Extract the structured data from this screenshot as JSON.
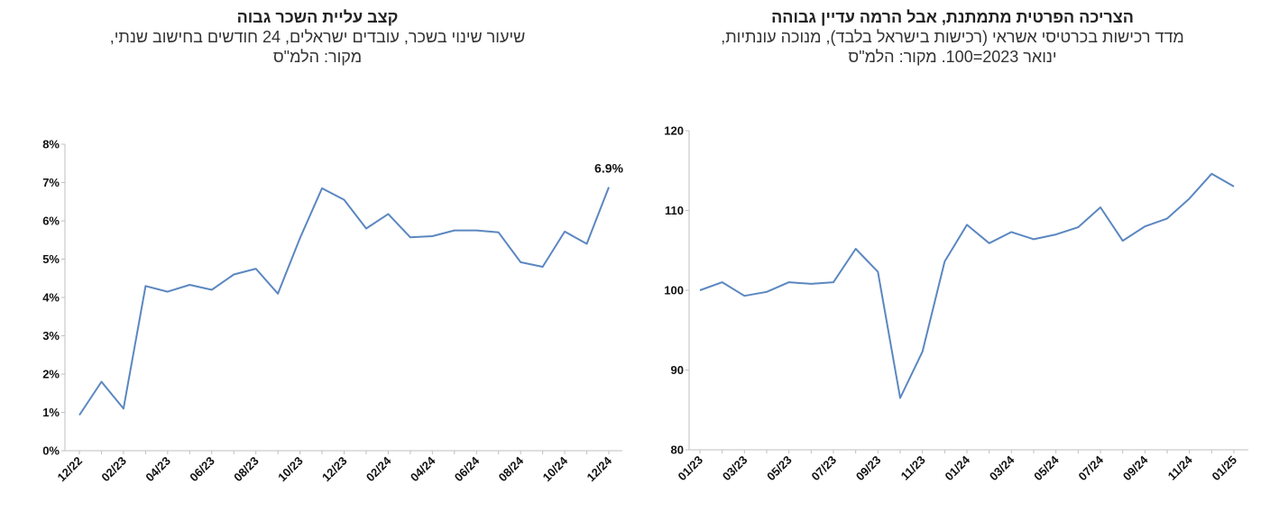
{
  "colors": {
    "line": "#5b87c0",
    "axis": "#bfbfbf",
    "text": "#111111"
  },
  "chart_data": [
    {
      "type": "line",
      "title": "קצב עליית השכר גבוה",
      "subtitle_lines": [
        "שיעור שינוי בשכר, עובדים ישראלים, 24 חודשים בחישוב שנתי,",
        "מקור: הלמ\"ס"
      ],
      "ylim": [
        0,
        8
      ],
      "yticks": [
        0,
        1,
        2,
        3,
        4,
        5,
        6,
        7,
        8
      ],
      "ytick_labels": [
        "0%",
        "1%",
        "2%",
        "3%",
        "4%",
        "5%",
        "6%",
        "7%",
        "8%"
      ],
      "x": [
        "12/22",
        "01/23",
        "02/23",
        "03/23",
        "04/23",
        "05/23",
        "06/23",
        "07/23",
        "08/23",
        "09/23",
        "10/23",
        "11/23",
        "12/23",
        "01/24",
        "02/24",
        "03/24",
        "04/24",
        "05/24",
        "06/24",
        "07/24",
        "08/24",
        "09/24",
        "10/24",
        "11/24",
        "12/24"
      ],
      "xtick_labels": [
        "12/22",
        "02/23",
        "04/23",
        "06/23",
        "08/23",
        "10/23",
        "12/23",
        "02/24",
        "04/24",
        "06/24",
        "08/24",
        "10/24",
        "12/24"
      ],
      "values": [
        0.93,
        1.8,
        1.1,
        4.3,
        4.15,
        4.33,
        4.2,
        4.6,
        4.75,
        4.1,
        5.55,
        6.85,
        6.55,
        5.8,
        6.18,
        5.57,
        5.6,
        5.75,
        5.75,
        5.7,
        4.92,
        4.8,
        5.72,
        5.4,
        6.88
      ],
      "data_labels": [
        {
          "index": 24,
          "text": "6.9%"
        }
      ],
      "grid": false
    },
    {
      "type": "line",
      "title": "הצריכה הפרטית מתמתנת, אבל הרמה עדיין גבוהה",
      "subtitle_lines": [
        "מדד רכישות בכרטיסי אשראי (רכישות בישראל בלבד), מנוכה עונתיות,",
        "ינואר 2023=100. מקור: הלמ\"ס"
      ],
      "ylim": [
        80,
        120
      ],
      "yticks": [
        80,
        90,
        100,
        110,
        120
      ],
      "ytick_labels": [
        "80",
        "90",
        "100",
        "110",
        "120"
      ],
      "x": [
        "01/23",
        "02/23",
        "03/23",
        "04/23",
        "05/23",
        "06/23",
        "07/23",
        "08/23",
        "09/23",
        "10/23",
        "11/23",
        "12/23",
        "01/24",
        "02/24",
        "03/24",
        "04/24",
        "05/24",
        "06/24",
        "07/24",
        "08/24",
        "09/24",
        "10/24",
        "11/24",
        "12/24",
        "01/25"
      ],
      "xtick_labels": [
        "01/23",
        "03/23",
        "05/23",
        "07/23",
        "09/23",
        "11/23",
        "01/24",
        "03/24",
        "05/24",
        "07/24",
        "09/24",
        "11/24",
        "01/25"
      ],
      "values": [
        100,
        101,
        99.3,
        99.8,
        101,
        100.8,
        101,
        105.2,
        102.3,
        86.5,
        92.3,
        103.6,
        108.2,
        105.9,
        107.3,
        106.4,
        107,
        107.9,
        110.4,
        106.2,
        108,
        109,
        111.5,
        114.6,
        113
      ],
      "data_labels": [],
      "grid": false
    }
  ]
}
